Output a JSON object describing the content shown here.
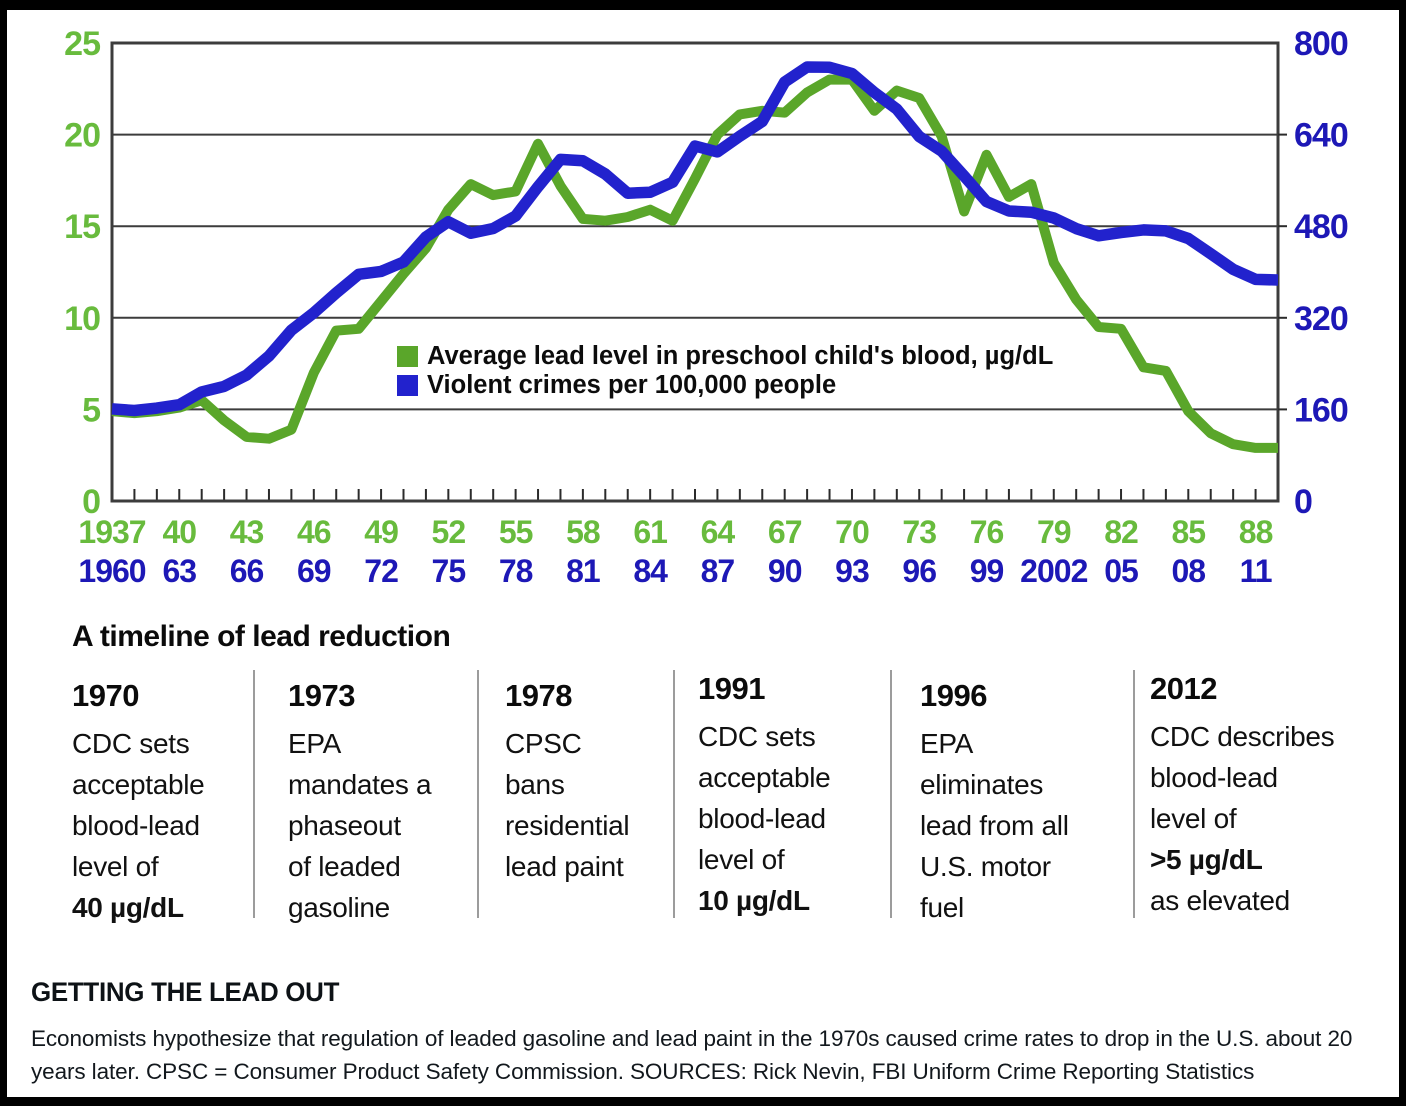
{
  "chart_data": {
    "type": "line",
    "title": "",
    "grid": true,
    "legend_position": "inside-middle-left",
    "legend": [
      {
        "label": "Average lead level in preschool child's blood, µg/dL",
        "color": "#5aa62a"
      },
      {
        "label": "Violent crimes per 100,000 people",
        "color": "#2222cd"
      }
    ],
    "left_axis": {
      "label": "Average lead level in preschool child's blood, µg/dL",
      "ticks": [
        0,
        5,
        10,
        15,
        20,
        25
      ],
      "range": [
        0,
        25
      ],
      "color": "#68bb3d"
    },
    "right_axis": {
      "label": "Violent crimes per 100,000 people",
      "ticks": [
        0,
        160,
        320,
        480,
        640,
        800
      ],
      "range": [
        0,
        800
      ],
      "color": "#1d18b6"
    },
    "x_axis": {
      "lead_year_labels": [
        "1937",
        "40",
        "43",
        "46",
        "49",
        "52",
        "55",
        "58",
        "61",
        "64",
        "67",
        "70",
        "73",
        "76",
        "79",
        "82",
        "85",
        "88"
      ],
      "crime_year_labels": [
        "1960",
        "63",
        "66",
        "69",
        "72",
        "75",
        "78",
        "81",
        "84",
        "87",
        "90",
        "93",
        "96",
        "99",
        "2002",
        "05",
        "08",
        "11"
      ],
      "label_step_years": 3,
      "offset_years": 23
    },
    "series": [
      {
        "name": "Average lead level in preschool child's blood, µg/dL",
        "axis": "left",
        "color": "#5aa62a",
        "start_year": 1937,
        "values": [
          4.9,
          4.8,
          4.9,
          5.1,
          5.5,
          4.4,
          3.5,
          3.4,
          3.9,
          7.0,
          9.3,
          9.4,
          10.9,
          12.4,
          13.8,
          15.9,
          17.3,
          16.7,
          16.9,
          19.5,
          17.2,
          15.4,
          15.3,
          15.5,
          15.9,
          15.3,
          17.6,
          20.0,
          21.1,
          21.3,
          21.2,
          22.3,
          23.0,
          23.0,
          21.3,
          22.4,
          22.0,
          19.9,
          15.8,
          18.9,
          16.6,
          17.3,
          13.0,
          11.0,
          9.5,
          9.4,
          7.3,
          7.1,
          4.9,
          3.7,
          3.1,
          2.9,
          2.9
        ]
      },
      {
        "name": "Violent crimes per 100,000 people",
        "axis": "right",
        "color": "#2222cd",
        "start_year": 1960,
        "values": [
          160.9,
          158.1,
          162.3,
          168.2,
          190.6,
          200.2,
          220.0,
          253.2,
          298.4,
          328.7,
          363.5,
          396.0,
          401.0,
          417.4,
          461.1,
          487.8,
          467.8,
          475.9,
          497.8,
          548.9,
          596.6,
          594.3,
          571.1,
          537.7,
          539.2,
          556.6,
          620.1,
          609.7,
          637.2,
          663.1,
          731.8,
          758.1,
          757.5,
          746.8,
          713.6,
          684.5,
          636.6,
          611.0,
          567.6,
          523.0,
          506.5,
          504.5,
          494.4,
          475.8,
          463.2,
          469.0,
          473.6,
          471.8,
          458.6,
          431.9,
          404.5,
          387.1,
          386.0
        ]
      }
    ]
  },
  "timeline": {
    "title": "A timeline of lead reduction",
    "entries": [
      {
        "year": "1970",
        "lines": [
          {
            "t": "CDC sets"
          },
          {
            "t": "acceptable"
          },
          {
            "t": "blood-lead"
          },
          {
            "t": "level of"
          },
          {
            "t": "40 µg/dL",
            "b": true
          }
        ]
      },
      {
        "year": "1973",
        "lines": [
          {
            "t": "EPA"
          },
          {
            "t": "mandates a"
          },
          {
            "t": "phaseout"
          },
          {
            "t": "of leaded"
          },
          {
            "t": "gasoline"
          }
        ]
      },
      {
        "year": "1978",
        "lines": [
          {
            "t": "CPSC"
          },
          {
            "t": "bans"
          },
          {
            "t": "residential"
          },
          {
            "t": "lead paint"
          }
        ]
      },
      {
        "year": "1991",
        "lines": [
          {
            "t": "CDC sets"
          },
          {
            "t": "acceptable"
          },
          {
            "t": "blood-lead"
          },
          {
            "t": "level of"
          },
          {
            "t": "10 µg/dL",
            "b": true
          }
        ]
      },
      {
        "year": "1996",
        "lines": [
          {
            "t": "EPA"
          },
          {
            "t": "eliminates"
          },
          {
            "t": "lead from all"
          },
          {
            "t": "U.S. motor"
          },
          {
            "t": "fuel"
          }
        ]
      },
      {
        "year": "2012",
        "lines": [
          {
            "t": "CDC describes"
          },
          {
            "t": "blood-lead"
          },
          {
            "t": "level of"
          },
          {
            "t": ">5 µg/dL",
            "b": true
          },
          {
            "t": "as elevated"
          }
        ]
      }
    ]
  },
  "caption": {
    "heading": "GETTING THE LEAD OUT",
    "lines": [
      "Economists hypothesize that regulation of leaded gasoline and lead paint in the 1970s caused crime rates to drop in the U.S. about 20",
      "years later. CPSC = Consumer Product Safety Commission. SOURCES: Rick Nevin, FBI Uniform Crime Reporting Statistics"
    ]
  },
  "colors": {
    "lead_line": "#5aa62a",
    "crime_line": "#2222cd",
    "lead_labels": "#68bb3d",
    "crime_labels": "#1d18b6",
    "gridline": "#3c3c3c",
    "tick": "#2b2b2b",
    "separator": "#9c9c9c"
  }
}
